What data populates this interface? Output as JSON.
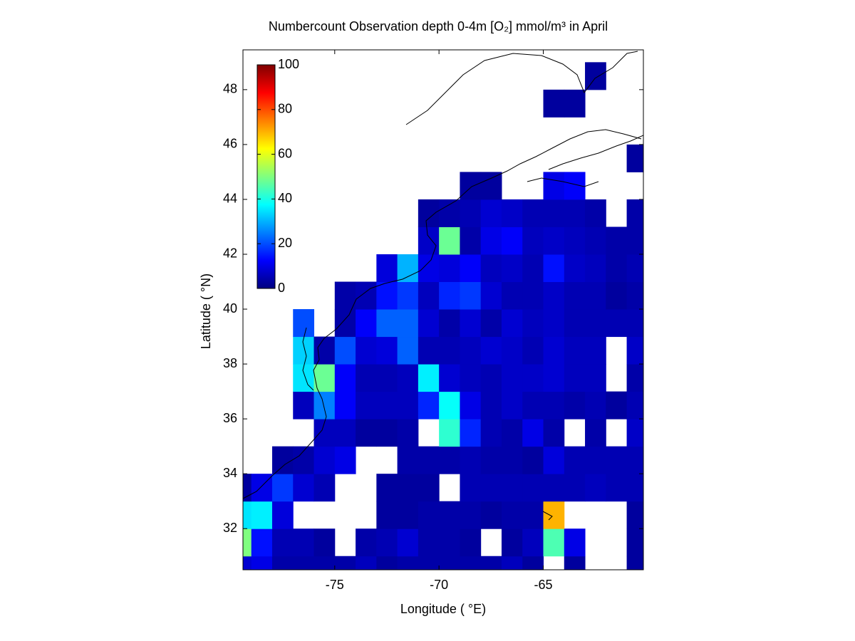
{
  "chart_data": {
    "type": "heatmap",
    "title": "Numbercount Observation depth 0-4m [O₂] mmol/m³ in April",
    "x_label": "Longitude ( °E)",
    "y_label": "Latitude ( °N)",
    "colormap": "jet",
    "clim": [
      0,
      100
    ],
    "cticks": [
      0,
      20,
      40,
      60,
      80,
      100
    ],
    "xlim": [
      -79.4,
      -60.2
    ],
    "ylim": [
      30.5,
      49.45
    ],
    "xticks": [
      -75,
      -70,
      -65
    ],
    "yticks": [
      32,
      34,
      36,
      38,
      40,
      42,
      44,
      46,
      48
    ],
    "x": [
      -79.5,
      -78.5,
      -77.5,
      -76.5,
      -75.5,
      -74.5,
      -73.5,
      -72.5,
      -71.5,
      -70.5,
      -69.5,
      -68.5,
      -67.5,
      -66.5,
      -65.5,
      -64.5,
      -63.5,
      -62.5,
      -61.5,
      -60.5
    ],
    "y": [
      30.5,
      31.5,
      32.5,
      33.5,
      34.5,
      35.5,
      36.5,
      37.5,
      38.5,
      39.5,
      40.5,
      41.5,
      42.5,
      43.5,
      44.5,
      45.5,
      46.5,
      47.5,
      48.5
    ],
    "values": [
      [
        8,
        10,
        4,
        4,
        4,
        4,
        6,
        3,
        4,
        4,
        4,
        4,
        4,
        6,
        3,
        null,
        3,
        null,
        null,
        3
      ],
      [
        50,
        14,
        5,
        5,
        3,
        null,
        4,
        5,
        8,
        4,
        4,
        3,
        null,
        3,
        6,
        45,
        10,
        null,
        null,
        3
      ],
      [
        35,
        36,
        9,
        null,
        null,
        null,
        null,
        3,
        3,
        4,
        4,
        4,
        3,
        4,
        4,
        70,
        null,
        null,
        null,
        3
      ],
      [
        3,
        10,
        18,
        8,
        5,
        null,
        null,
        3,
        3,
        3,
        null,
        5,
        5,
        5,
        5,
        5,
        5,
        6,
        5,
        5
      ],
      [
        null,
        null,
        3,
        4,
        8,
        10,
        null,
        null,
        4,
        4,
        4,
        5,
        4,
        4,
        3,
        9,
        5,
        5,
        5,
        5
      ],
      [
        null,
        null,
        null,
        null,
        6,
        6,
        3,
        3,
        4,
        null,
        42,
        16,
        5,
        4,
        10,
        4,
        null,
        4,
        null,
        7
      ],
      [
        null,
        null,
        null,
        6,
        25,
        12,
        6,
        6,
        6,
        16,
        38,
        10,
        5,
        7,
        5,
        5,
        4,
        5,
        3,
        5
      ],
      [
        null,
        null,
        null,
        35,
        48,
        12,
        5,
        5,
        6,
        36,
        8,
        6,
        5,
        7,
        7,
        8,
        6,
        6,
        null,
        4
      ],
      [
        null,
        null,
        null,
        33,
        4,
        20,
        8,
        9,
        22,
        5,
        5,
        6,
        8,
        7,
        5,
        8,
        6,
        6,
        null,
        7
      ],
      [
        null,
        null,
        null,
        20,
        null,
        4,
        12,
        22,
        22,
        8,
        4,
        8,
        4,
        8,
        6,
        7,
        5,
        5,
        5,
        5
      ],
      [
        null,
        null,
        null,
        null,
        null,
        4,
        5,
        14,
        18,
        6,
        16,
        18,
        8,
        5,
        5,
        7,
        5,
        5,
        3,
        4
      ],
      [
        null,
        null,
        null,
        null,
        null,
        null,
        null,
        9,
        30,
        10,
        9,
        12,
        6,
        7,
        5,
        14,
        7,
        6,
        4,
        5
      ],
      [
        null,
        null,
        null,
        null,
        null,
        null,
        null,
        null,
        null,
        7,
        48,
        4,
        10,
        12,
        6,
        7,
        6,
        5,
        4,
        4
      ],
      [
        null,
        null,
        null,
        null,
        null,
        null,
        null,
        null,
        null,
        3,
        4,
        5,
        8,
        7,
        5,
        5,
        5,
        4,
        null,
        4
      ],
      [
        null,
        null,
        null,
        null,
        null,
        null,
        null,
        null,
        null,
        null,
        null,
        3,
        3,
        null,
        null,
        10,
        12,
        null,
        null,
        null
      ],
      [
        null,
        null,
        null,
        null,
        null,
        null,
        null,
        null,
        null,
        null,
        null,
        null,
        null,
        null,
        null,
        null,
        null,
        null,
        null,
        3
      ],
      [
        null,
        null,
        null,
        null,
        null,
        null,
        null,
        null,
        null,
        null,
        null,
        null,
        null,
        null,
        null,
        null,
        null,
        null,
        null,
        null
      ],
      [
        null,
        null,
        null,
        null,
        null,
        null,
        null,
        null,
        null,
        null,
        null,
        null,
        null,
        null,
        null,
        3,
        3,
        null,
        null,
        null
      ],
      [
        null,
        null,
        null,
        null,
        null,
        null,
        null,
        null,
        null,
        null,
        null,
        null,
        null,
        null,
        null,
        null,
        null,
        3,
        null,
        null
      ]
    ]
  }
}
